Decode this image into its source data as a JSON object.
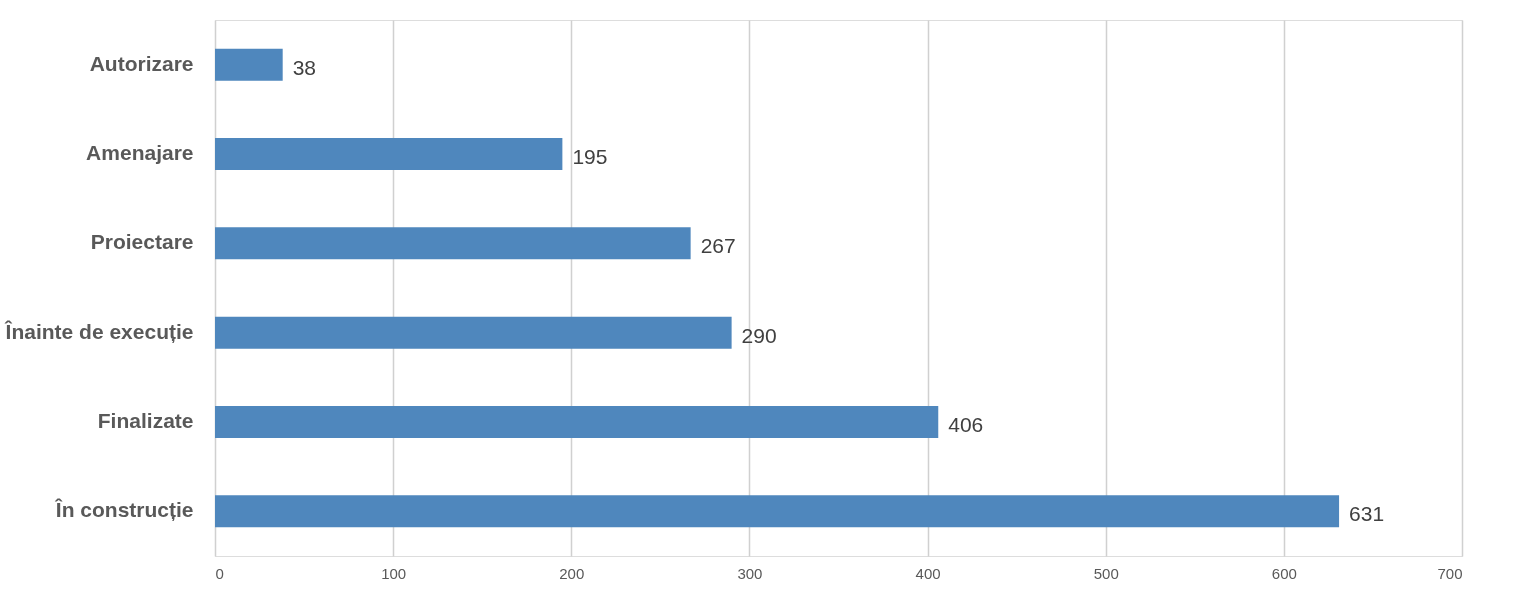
{
  "chart_data": {
    "type": "bar",
    "orientation": "horizontal",
    "categories": [
      "Autorizare",
      "Amenajare",
      "Proiectare",
      "Înainte de execuție",
      "Finalizate",
      "În construcție"
    ],
    "values": [
      38,
      195,
      267,
      290,
      406,
      631
    ],
    "color": "#4f87bd",
    "xlim": [
      0,
      700
    ],
    "xticks": [
      0,
      100,
      200,
      300,
      400,
      500,
      600,
      700
    ],
    "grid": "x",
    "data_labels": true
  }
}
